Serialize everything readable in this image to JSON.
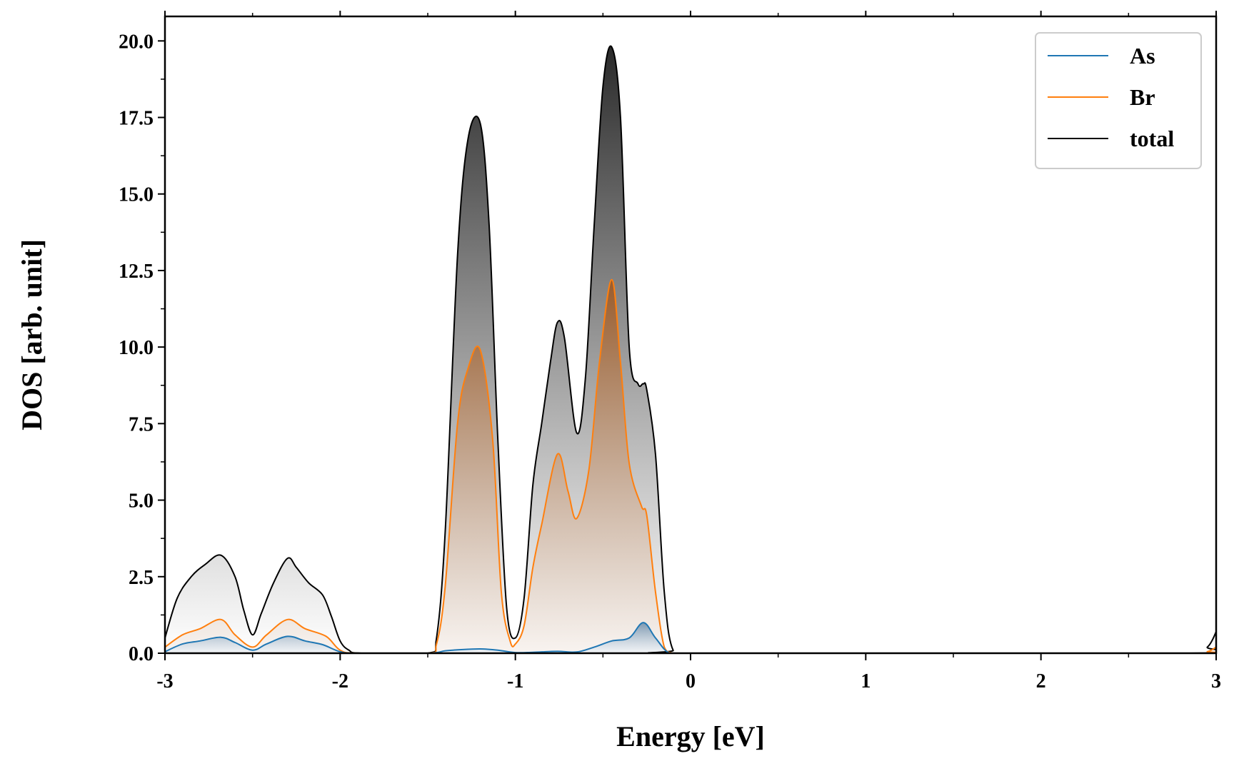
{
  "chart_data": {
    "type": "area",
    "title": "",
    "xlabel": "Energy [eV]",
    "ylabel": "DOS [arb. unit]",
    "xlim": [
      -3,
      3
    ],
    "ylim": [
      0,
      20.8
    ],
    "xticks": [
      -3,
      -2,
      -1,
      0,
      1,
      2,
      3
    ],
    "xtick_labels": [
      "-3",
      "-2",
      "-1",
      "0",
      "1",
      "2",
      "3"
    ],
    "yticks": [
      0,
      2.5,
      5,
      7.5,
      10,
      12.5,
      15,
      17.5,
      20
    ],
    "ytick_labels": [
      "0.0",
      "2.5",
      "5.0",
      "7.5",
      "10.0",
      "12.5",
      "15.0",
      "17.5",
      "20.0"
    ],
    "grid": false,
    "legend": {
      "position": "top-right"
    },
    "series": [
      {
        "name": "As",
        "color": "#1f77b4",
        "x": [
          -3,
          -2.9,
          -2.8,
          -2.68,
          -2.6,
          -2.5,
          -2.42,
          -2.3,
          -2.2,
          -2.1,
          -2.0,
          -1.9,
          -1.5,
          -1.4,
          -1.3,
          -1.2,
          -1.1,
          -1.0,
          -0.9,
          -0.76,
          -0.65,
          -0.55,
          -0.45,
          -0.35,
          -0.27,
          -0.2,
          -0.12,
          0,
          3
        ],
        "values": [
          0.05,
          0.3,
          0.4,
          0.52,
          0.35,
          0.1,
          0.3,
          0.55,
          0.4,
          0.28,
          0.05,
          0,
          0,
          0.08,
          0.12,
          0.14,
          0.1,
          0.02,
          0.03,
          0.06,
          0.04,
          0.2,
          0.4,
          0.5,
          1.0,
          0.5,
          0,
          0,
          0
        ]
      },
      {
        "name": "Br",
        "color": "#ff7f0e",
        "x": [
          -3,
          -2.9,
          -2.8,
          -2.68,
          -2.6,
          -2.5,
          -2.42,
          -2.3,
          -2.2,
          -2.08,
          -2.0,
          -1.9,
          -1.5,
          -1.45,
          -1.4,
          -1.33,
          -1.27,
          -1.2,
          -1.13,
          -1.08,
          -1.03,
          -1.0,
          -0.95,
          -0.9,
          -0.85,
          -0.76,
          -0.7,
          -0.65,
          -0.58,
          -0.52,
          -0.45,
          -0.4,
          -0.35,
          -0.28,
          -0.25,
          -0.2,
          -0.15,
          -0.1,
          0,
          2.85,
          2.95,
          3
        ],
        "values": [
          0.2,
          0.6,
          0.8,
          1.1,
          0.6,
          0.2,
          0.6,
          1.1,
          0.8,
          0.55,
          0.1,
          0,
          0,
          0.3,
          2.2,
          7.5,
          9.3,
          9.9,
          7.0,
          2.0,
          0.4,
          0.3,
          0.9,
          2.8,
          4.2,
          6.5,
          5.3,
          4.4,
          6.0,
          9.5,
          12.2,
          9.5,
          6.2,
          4.8,
          4.5,
          2.0,
          0.2,
          0,
          0,
          0,
          0.05,
          0.2
        ]
      },
      {
        "name": "total",
        "color": "#000000",
        "x": [
          -3,
          -2.93,
          -2.85,
          -2.77,
          -2.68,
          -2.6,
          -2.55,
          -2.5,
          -2.45,
          -2.38,
          -2.3,
          -2.25,
          -2.18,
          -2.1,
          -2.05,
          -2.0,
          -1.95,
          -1.88,
          -1.5,
          -1.45,
          -1.4,
          -1.33,
          -1.27,
          -1.2,
          -1.15,
          -1.1,
          -1.05,
          -1.0,
          -0.95,
          -0.9,
          -0.85,
          -0.8,
          -0.76,
          -0.72,
          -0.65,
          -0.6,
          -0.55,
          -0.5,
          -0.45,
          -0.4,
          -0.35,
          -0.3,
          -0.27,
          -0.25,
          -0.2,
          -0.15,
          -0.1,
          0,
          2.85,
          2.95,
          3
        ],
        "values": [
          0.5,
          1.8,
          2.5,
          2.9,
          3.2,
          2.5,
          1.4,
          0.6,
          1.3,
          2.3,
          3.1,
          2.8,
          2.3,
          1.9,
          1.2,
          0.4,
          0.1,
          0,
          0,
          0.5,
          4.0,
          13.0,
          16.8,
          17.3,
          14.0,
          7.0,
          1.5,
          0.5,
          1.8,
          5.5,
          7.5,
          9.5,
          10.8,
          10.3,
          7.2,
          9.0,
          14.0,
          18.5,
          19.8,
          17.5,
          10.0,
          8.8,
          8.8,
          8.6,
          6.5,
          2.0,
          0.1,
          0,
          0,
          0.2,
          0.7
        ]
      }
    ]
  }
}
